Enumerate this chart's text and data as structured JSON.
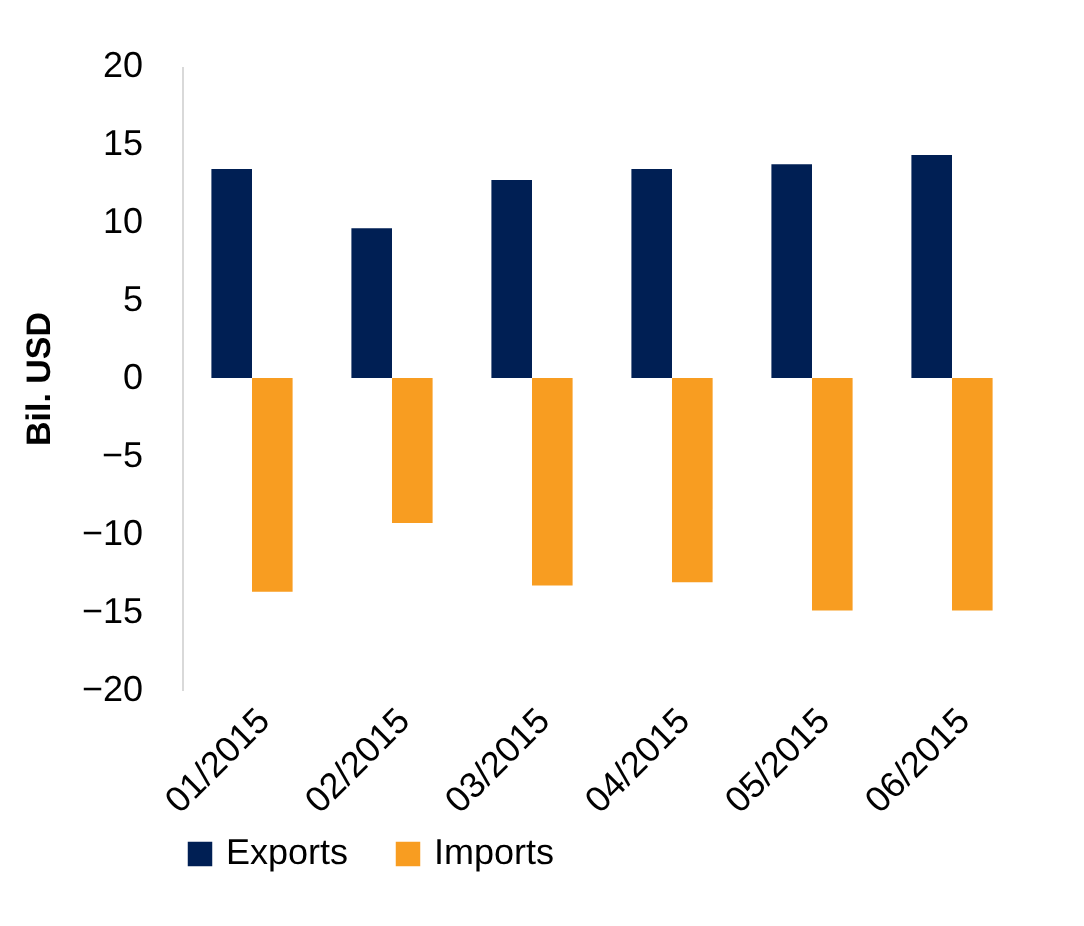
{
  "chart_data": {
    "type": "bar",
    "ylabel": "Bil. USD",
    "categories": [
      "01/2015",
      "02/2015",
      "03/2015",
      "04/2015",
      "05/2015",
      "06/2015"
    ],
    "series": [
      {
        "name": "Exports",
        "color": "#001f54",
        "values": [
          13.4,
          9.6,
          12.7,
          13.4,
          13.7,
          14.3
        ]
      },
      {
        "name": "Imports",
        "color": "#f89d21",
        "values": [
          -13.7,
          -9.3,
          -13.3,
          -13.1,
          -14.9,
          -14.9
        ]
      }
    ],
    "ylim": [
      -20,
      20
    ],
    "yticks": [
      -20,
      -15,
      -10,
      -5,
      0,
      5,
      10,
      15,
      20
    ],
    "grid": false,
    "legend": "bottom"
  }
}
